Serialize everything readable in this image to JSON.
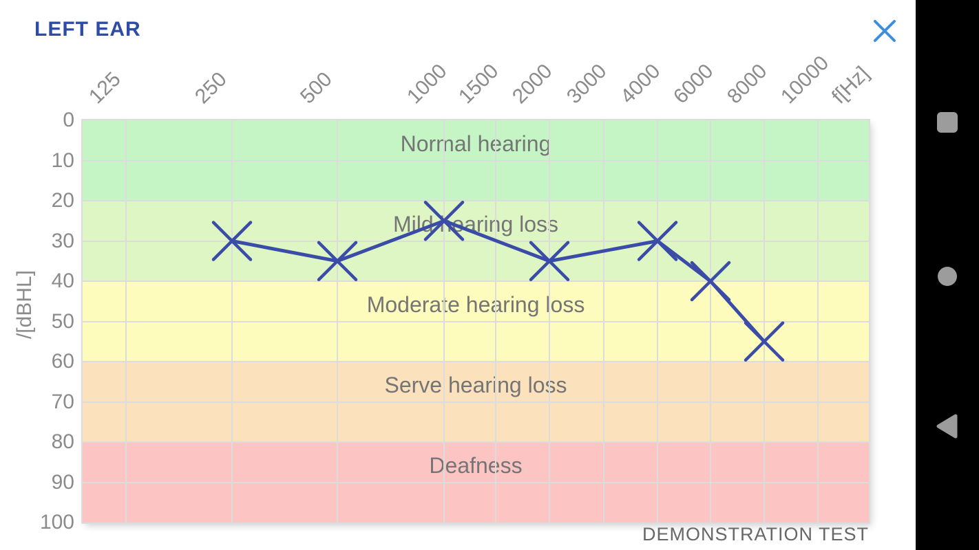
{
  "header": {
    "title": "LEFT EAR",
    "close_icon": "close-icon"
  },
  "chart_data": {
    "type": "line",
    "title": "LEFT EAR",
    "footnote": "DEMONSTRATION TEST",
    "grid": true,
    "x_axis": {
      "unit_label": "f[Hz]",
      "ticks": [
        125,
        250,
        500,
        1000,
        1500,
        2000,
        3000,
        4000,
        6000,
        8000,
        10000
      ],
      "tick_percents": [
        5.52,
        19.0,
        32.4,
        45.97,
        52.54,
        59.37,
        66.29,
        73.12,
        79.86,
        86.69,
        93.52
      ],
      "unit_label_percent": 100
    },
    "y_axis": {
      "label": "/[dBHL]",
      "ticks": [
        0,
        10,
        20,
        30,
        40,
        50,
        60,
        70,
        80,
        90,
        100
      ],
      "range": [
        0,
        100
      ],
      "inverted": true
    },
    "bands": [
      {
        "label": "Normal hearing",
        "from": 0,
        "to": 20,
        "color": "#c5f5c5"
      },
      {
        "label": "Mild hearing loss",
        "from": 20,
        "to": 40,
        "color": "#def6c3"
      },
      {
        "label": "Moderate hearing loss",
        "from": 40,
        "to": 60,
        "color": "#fdfcbd"
      },
      {
        "label": "Serve hearing loss",
        "from": 60,
        "to": 80,
        "color": "#fce1bd"
      },
      {
        "label": "Deafness",
        "from": 80,
        "to": 100,
        "color": "#fdc4c4"
      }
    ],
    "series": [
      {
        "name": "left-ear-thresholds",
        "marker": "x",
        "color": "#3a4ca8",
        "points": [
          {
            "f": 250,
            "db": 30
          },
          {
            "f": 500,
            "db": 35
          },
          {
            "f": 1000,
            "db": 25
          },
          {
            "f": 2000,
            "db": 35
          },
          {
            "f": 4000,
            "db": 30
          },
          {
            "f": 6000,
            "db": 40
          },
          {
            "f": 8000,
            "db": 55
          }
        ]
      }
    ]
  },
  "nav_bar": {
    "buttons": [
      {
        "name": "recents",
        "icon": "recents-square-icon"
      },
      {
        "name": "home",
        "icon": "home-circle-icon"
      },
      {
        "name": "back",
        "icon": "back-triangle-icon"
      }
    ]
  },
  "colors": {
    "title_blue": "#2e4ca6",
    "close_blue": "#3e8ede",
    "line_blue": "#3a4ca8",
    "axis_text": "#8b8b8b",
    "band_text": "#757575",
    "grid": "#dcdcdc",
    "navbar_bg": "#000000",
    "nav_icon_gray": "#9c9c9c"
  }
}
